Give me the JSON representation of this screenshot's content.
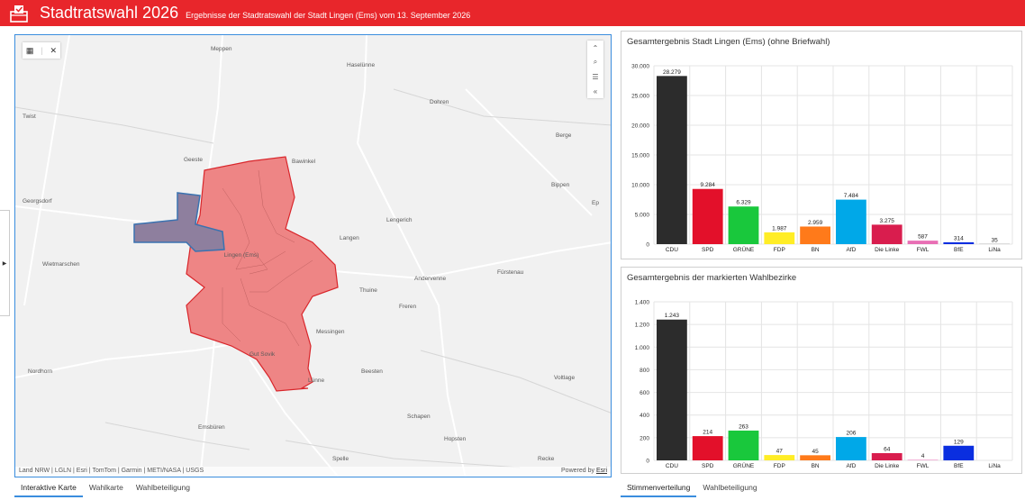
{
  "header": {
    "title": "Stadtratswahl 2026",
    "subtitle": "Ergebnisse der Stadtratswahl der Stadt Lingen (Ems) vom 13. September 2026"
  },
  "map": {
    "labels": [
      {
        "text": "Meppen"
      },
      {
        "text": "Haselünne"
      },
      {
        "text": "Dohren"
      },
      {
        "text": "Twist"
      },
      {
        "text": "Berge"
      },
      {
        "text": "Geeste"
      },
      {
        "text": "Bawinkel"
      },
      {
        "text": "Bippen"
      },
      {
        "text": "Ep"
      },
      {
        "text": "Georgsdorf"
      },
      {
        "text": "Lengerich"
      },
      {
        "text": "Langen"
      },
      {
        "text": "Wietmarschen"
      },
      {
        "text": "Lingen (Ems)"
      },
      {
        "text": "Fürstenau"
      },
      {
        "text": "Andervenne"
      },
      {
        "text": "Thuine"
      },
      {
        "text": "Freren"
      },
      {
        "text": "Messingen"
      },
      {
        "text": "Gut Sovik"
      },
      {
        "text": "Nordhorn"
      },
      {
        "text": "Beesten"
      },
      {
        "text": "Lünne"
      },
      {
        "text": "Voltlage"
      },
      {
        "text": "Schapen"
      },
      {
        "text": "Emsbüren"
      },
      {
        "text": "Hopsten"
      },
      {
        "text": "Spelle"
      },
      {
        "text": "Recke"
      }
    ],
    "attribution": "Land NRW | LGLN | Esri | TomTom | Garmin | METI/NASA | USGS",
    "powered_by": "Powered by",
    "powered_link": "Esri"
  },
  "map_tabs": [
    {
      "label": "Interaktive Karte",
      "active": true
    },
    {
      "label": "Wahlkarte",
      "active": false
    },
    {
      "label": "Wahlbeteiligung",
      "active": false
    }
  ],
  "chart_tabs": [
    {
      "label": "Stimmenverteilung",
      "active": true
    },
    {
      "label": "Wahlbeteiligung",
      "active": false
    }
  ],
  "chart_data": [
    {
      "type": "bar",
      "title": "Gesamtergebnis Stadt Lingen (Ems) (ohne Briefwahl)",
      "categories": [
        "CDU",
        "SPD",
        "GRÜNE",
        "FDP",
        "BN",
        "AfD",
        "Die Linke",
        "FWL",
        "BfE",
        "LiNa"
      ],
      "values": [
        28279,
        9284,
        6329,
        1987,
        2959,
        7484,
        3275,
        587,
        314,
        35
      ],
      "value_labels": [
        "28.279",
        "9.284",
        "6.329",
        "1.987",
        "2.959",
        "7.484",
        "3.275",
        "587",
        "314",
        "35"
      ],
      "colors": [
        "#2c2c2c",
        "#e3102a",
        "#19c83c",
        "#ffed26",
        "#ff7a1a",
        "#00a8e8",
        "#d91d4e",
        "#e86fb4",
        "#0a2ee0",
        "#888888"
      ],
      "yticks": [
        0,
        5000,
        10000,
        15000,
        20000,
        25000,
        30000
      ],
      "ytick_labels": [
        "0",
        "5.000",
        "10.000",
        "15.000",
        "20.000",
        "25.000",
        "30.000"
      ],
      "ylim": [
        0,
        30000
      ],
      "grid": true
    },
    {
      "type": "bar",
      "title": "Gesamtergebnis der markierten Wahlbezirke",
      "categories": [
        "CDU",
        "SPD",
        "GRÜNE",
        "FDP",
        "BN",
        "AfD",
        "Die Linke",
        "FWL",
        "BfE",
        "LiNa"
      ],
      "values": [
        1243,
        214,
        263,
        47,
        45,
        206,
        64,
        4,
        129,
        0
      ],
      "value_labels": [
        "1.243",
        "214",
        "263",
        "47",
        "45",
        "206",
        "64",
        "4",
        "129",
        ""
      ],
      "colors": [
        "#2c2c2c",
        "#e3102a",
        "#19c83c",
        "#ffed26",
        "#ff7a1a",
        "#00a8e8",
        "#d91d4e",
        "#e86fb4",
        "#0a2ee0",
        "#888888"
      ],
      "yticks": [
        0,
        200,
        400,
        600,
        800,
        1000,
        1200,
        1400
      ],
      "ytick_labels": [
        "0",
        "200",
        "400",
        "600",
        "800",
        "1.000",
        "1.200",
        "1.400"
      ],
      "ylim": [
        0,
        1400
      ],
      "grid": true
    }
  ]
}
